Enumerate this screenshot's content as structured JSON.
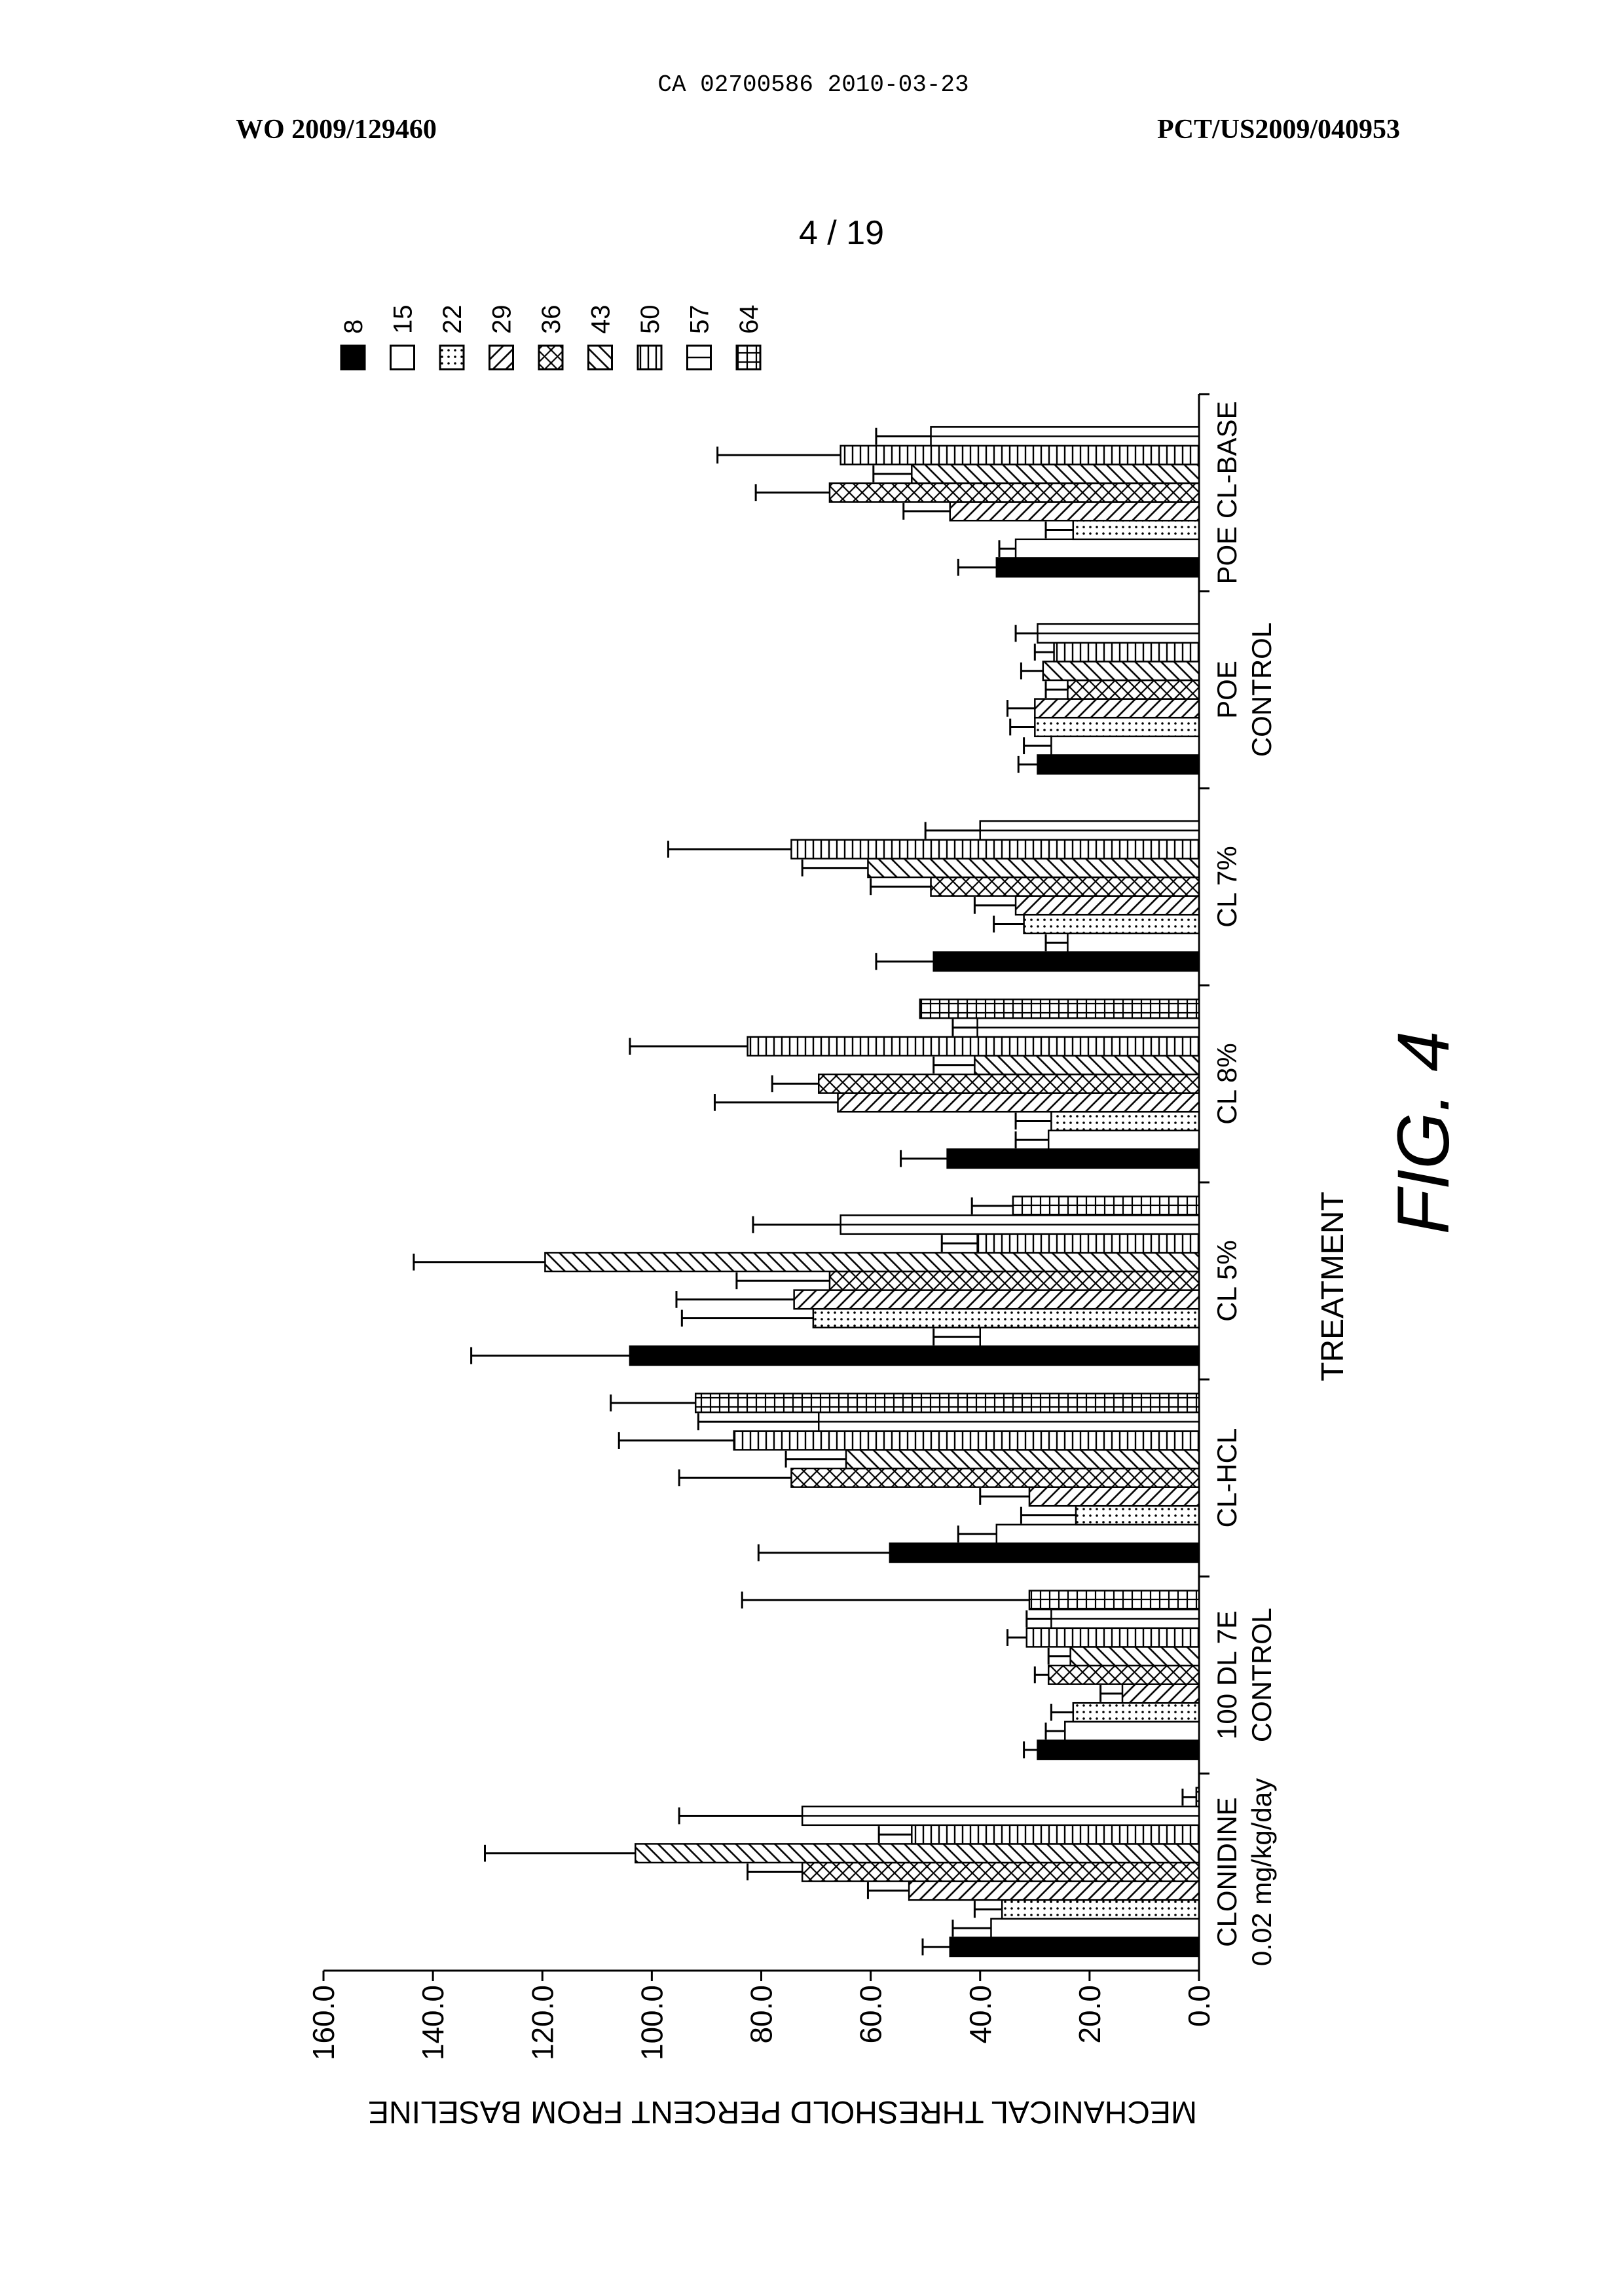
{
  "header": {
    "document_id": "CA 02700586 2010-03-23",
    "publication_number": "WO 2009/129460",
    "application_number": "PCT/US2009/040953",
    "page_number": "4 / 19"
  },
  "figure": {
    "label": "FIG. 4"
  },
  "chart_data": {
    "type": "bar",
    "xlabel": "TREATMENT",
    "ylabel": "MECHANICAL THRESHOLD PERCENT FROM BASELINE",
    "ylim": [
      0,
      160
    ],
    "yticks": [
      0,
      20,
      40,
      60,
      80,
      100,
      120,
      140,
      160
    ],
    "ytick_labels": [
      "0.0",
      "20.0",
      "40.0",
      "60.0",
      "80.0",
      "100.0",
      "120.0",
      "140.0",
      "160.0"
    ],
    "categories": [
      [
        "CLONIDINE",
        "0.02 mg/kg/day"
      ],
      [
        "100 DL 7E",
        "CONTROL"
      ],
      [
        "CL-HCL"
      ],
      [
        "CL 5%"
      ],
      [
        "CL 8%"
      ],
      [
        "CL 7%"
      ],
      [
        "POE",
        "CONTROL"
      ],
      [
        "POE CL-BASE"
      ]
    ],
    "grid": false,
    "legend_position": "top-right",
    "error_bars": true,
    "series": [
      {
        "name": "8",
        "values": [
          45.5,
          29.5,
          56.5,
          104.0,
          46.0,
          48.5,
          29.5,
          37.0
        ],
        "errors": [
          5.0,
          2.5,
          24.0,
          29.0,
          8.5,
          10.5,
          3.5,
          7.0
        ]
      },
      {
        "name": "15",
        "values": [
          38.0,
          24.5,
          37.0,
          40.0,
          27.5,
          24.0,
          27.0,
          33.5
        ],
        "errors": [
          7.0,
          3.5,
          7.0,
          8.5,
          6.0,
          4.0,
          5.0,
          3.0
        ]
      },
      {
        "name": "22",
        "values": [
          36.0,
          23.0,
          22.5,
          70.5,
          27.0,
          32.0,
          30.0,
          23.0
        ],
        "errors": [
          5.0,
          4.0,
          10.0,
          24.0,
          6.5,
          5.5,
          4.5,
          5.0
        ]
      },
      {
        "name": "29",
        "values": [
          53.0,
          14.0,
          31.0,
          74.0,
          66.0,
          33.5,
          30.0,
          45.5
        ],
        "errors": [
          7.5,
          4.0,
          9.0,
          21.5,
          22.5,
          7.5,
          5.0,
          8.5
        ]
      },
      {
        "name": "36",
        "values": [
          72.5,
          27.5,
          74.5,
          67.5,
          69.5,
          49.0,
          24.0,
          67.5
        ],
        "errors": [
          10.0,
          2.5,
          20.5,
          17.0,
          8.5,
          11.0,
          4.0,
          13.5
        ]
      },
      {
        "name": "43",
        "values": [
          103.0,
          23.5,
          64.5,
          119.5,
          41.0,
          60.5,
          28.5,
          52.5
        ],
        "errors": [
          27.5,
          4.0,
          11.0,
          24.0,
          7.5,
          12.0,
          4.0,
          7.0
        ]
      },
      {
        "name": "50",
        "values": [
          52.5,
          31.5,
          85.0,
          40.5,
          82.5,
          74.5,
          26.5,
          65.5
        ],
        "errors": [
          6.0,
          3.5,
          21.0,
          6.5,
          21.5,
          22.5,
          3.5,
          22.5
        ]
      },
      {
        "name": "57",
        "values": [
          72.5,
          27.0,
          69.5,
          65.5,
          40.5,
          40.0,
          29.5,
          49.0
        ],
        "errors": [
          22.5,
          4.5,
          22.0,
          16.0,
          4.5,
          10.0,
          4.0,
          10.0
        ]
      },
      {
        "name": "64",
        "values": [
          0.5,
          31.0,
          92.0,
          34.0,
          51.0,
          null,
          null,
          null
        ],
        "errors": [
          2.5,
          52.5,
          15.5,
          7.5,
          null,
          null,
          null,
          null
        ]
      }
    ]
  }
}
